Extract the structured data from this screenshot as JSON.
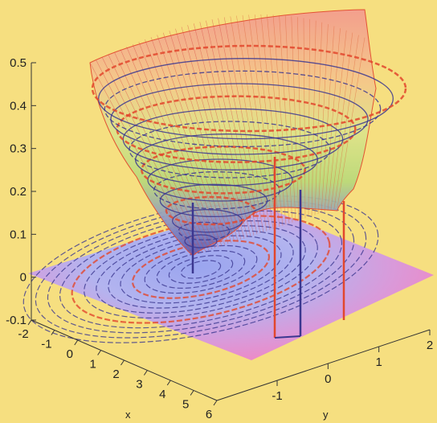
{
  "chart_data": {
    "type": "surface3d",
    "title": "",
    "colors": {
      "background": "#f6df80",
      "floor_magenta": "#e98fd0",
      "floor_blue": "#a9aef0",
      "contour_dark": "#3b3790",
      "contour_red": "#e2472d",
      "mesh_red": "#e85a4a",
      "mesh_green": "#9fc85f",
      "mesh_blue": "#4c4caa"
    },
    "z_axis": {
      "range": [
        -0.1,
        0.5
      ],
      "ticks": [
        {
          "value": 0.5,
          "label": "0.5"
        },
        {
          "value": 0.4,
          "label": "0.4"
        },
        {
          "value": 0.3,
          "label": "0.3"
        },
        {
          "value": 0.2,
          "label": "0.2"
        },
        {
          "value": 0.1,
          "label": "0.1"
        },
        {
          "value": 0,
          "label": "0"
        },
        {
          "value": -0.1,
          "label": "-0.1"
        }
      ]
    },
    "x_axis": {
      "label": "x",
      "range": [
        -2,
        6
      ],
      "ticks": [
        "-2",
        "-1",
        "0",
        "1",
        "2",
        "3",
        "4",
        "5",
        "6"
      ]
    },
    "y_axis": {
      "label": "y",
      "range": [
        -2,
        2
      ],
      "ticks": [
        "-1",
        "0",
        "1",
        "2"
      ]
    }
  }
}
